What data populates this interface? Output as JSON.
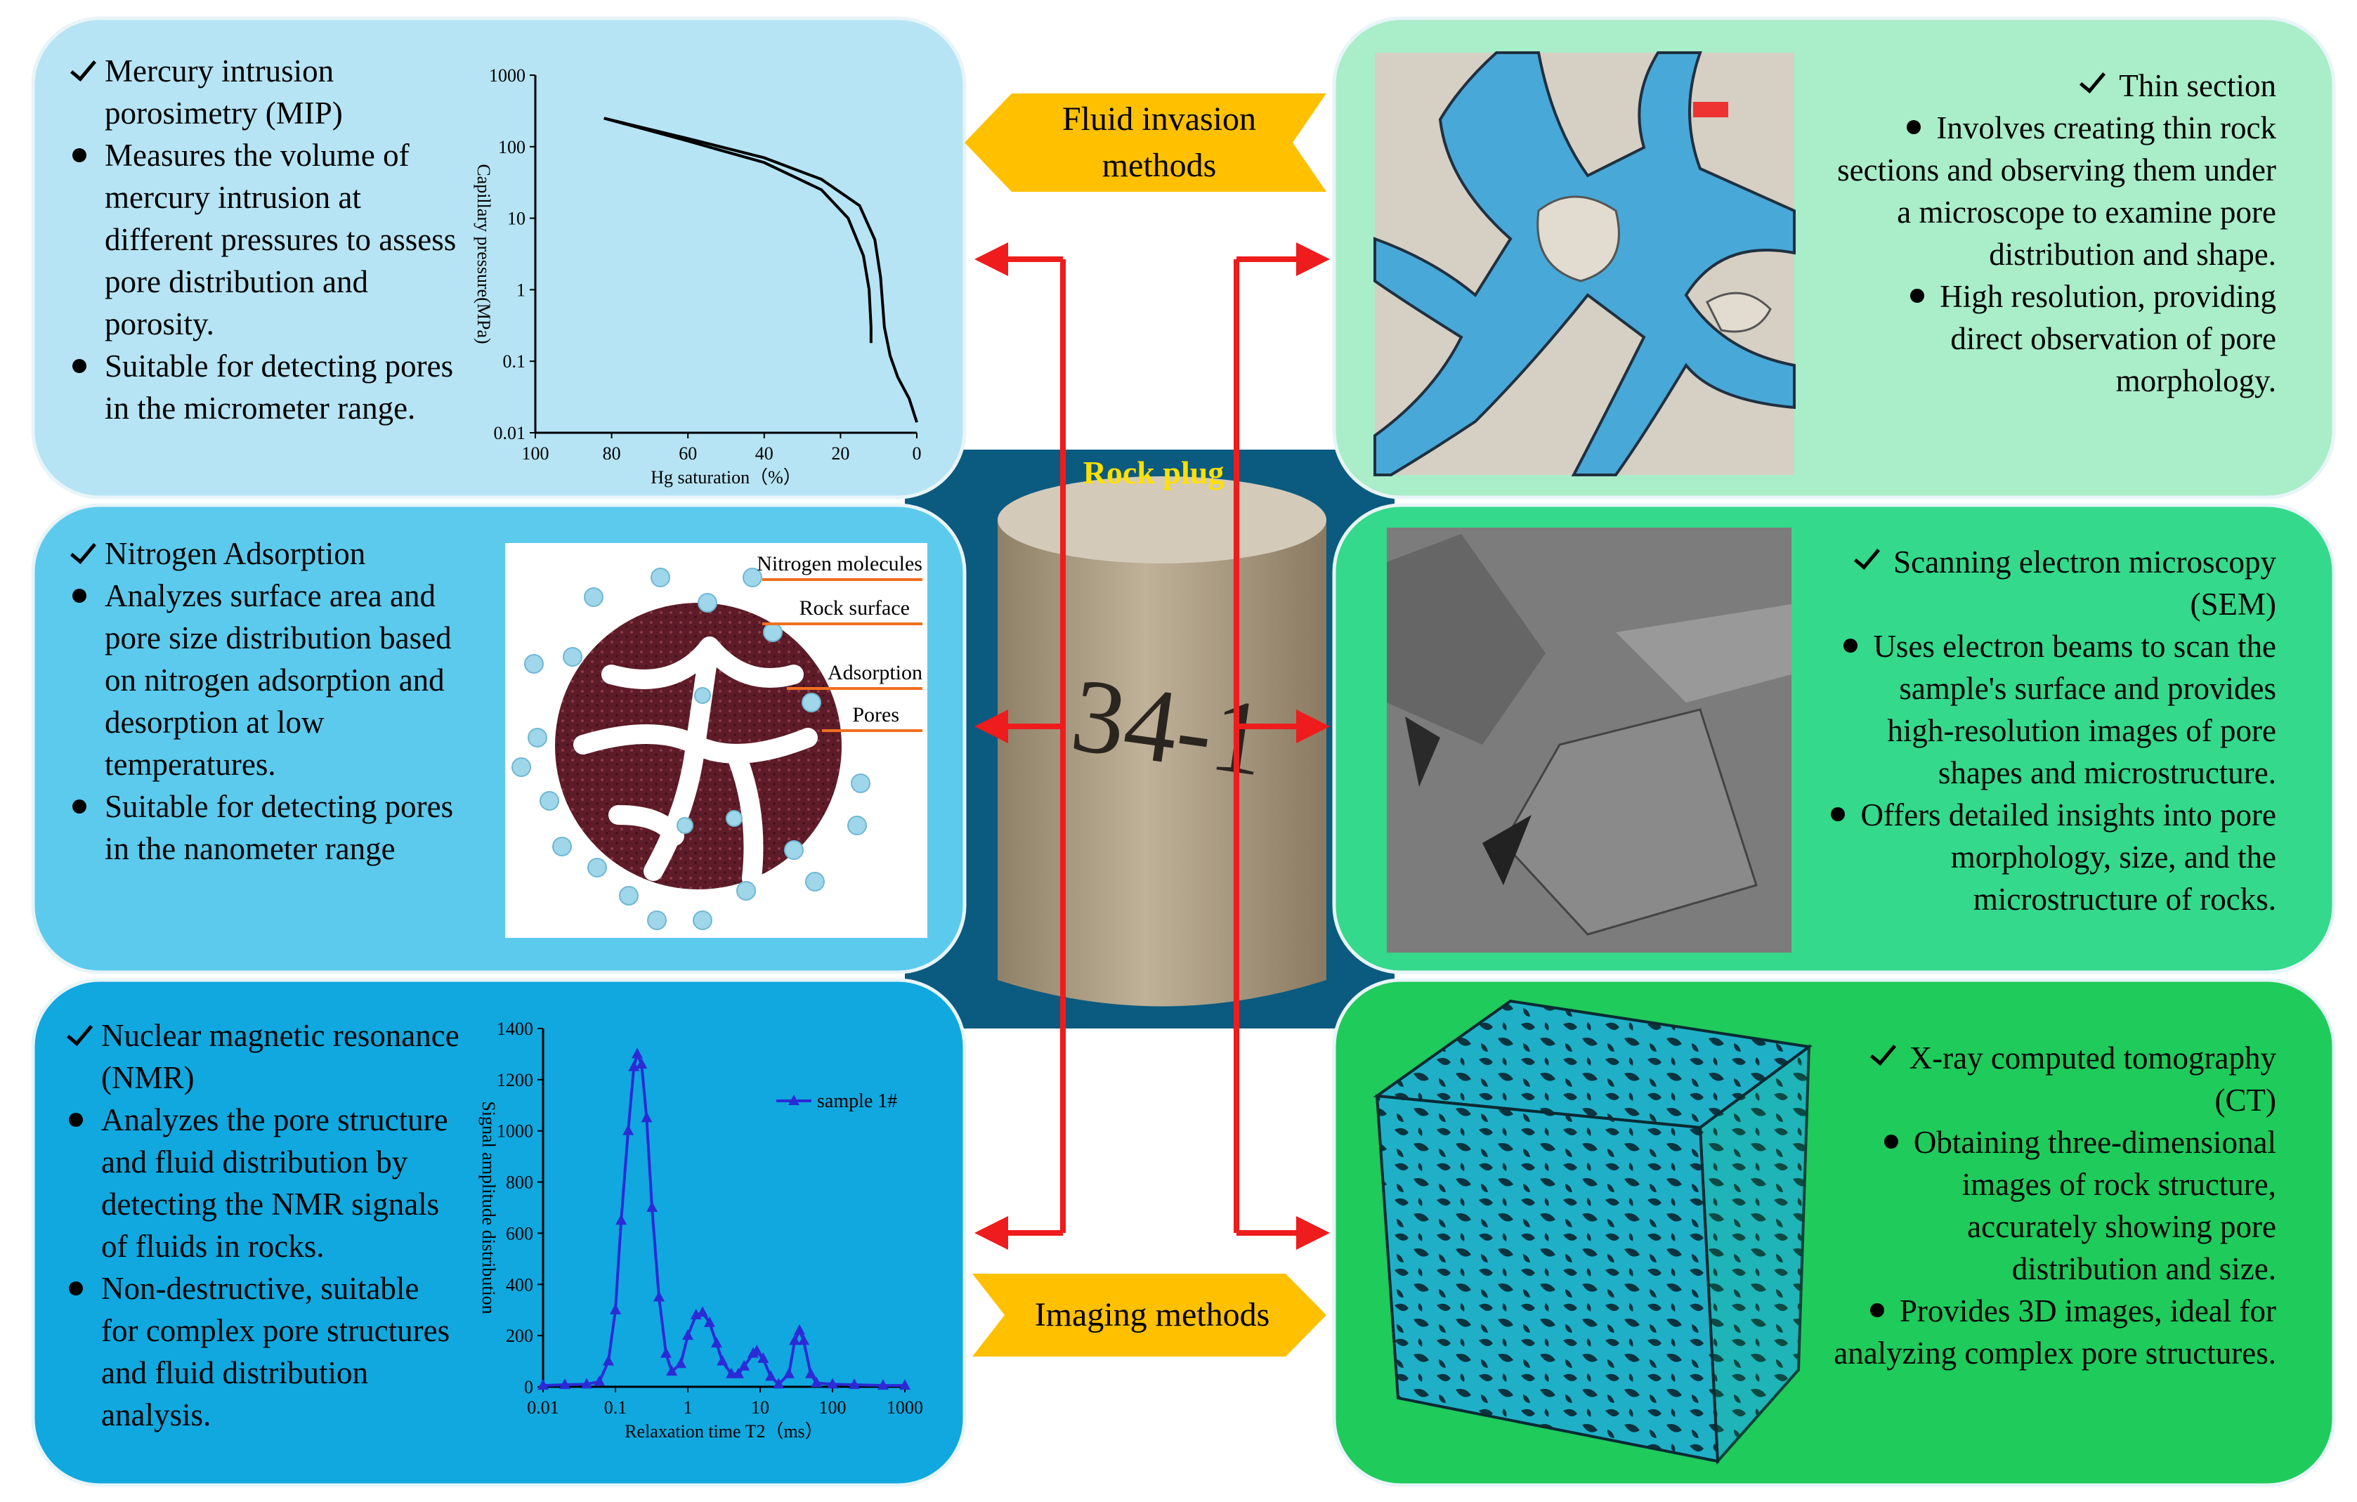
{
  "center": {
    "label": "Rock plug",
    "specimen_mark": "34-1"
  },
  "banners": [
    "Fluid invasion methods",
    "Imaging methods"
  ],
  "panels": [
    {
      "title": "Mercury intrusion porosimetry (MIP)",
      "bullets": [
        "Measures the volume of mercury intrusion at different pressures to assess pore distribution and porosity.",
        "Suitable for detecting pores in the micrometer range."
      ]
    },
    {
      "title": "Nitrogen Adsorption",
      "bullets": [
        "Analyzes surface area and pore size distribution based on nitrogen adsorption and desorption at low temperatures.",
        "Suitable for detecting pores in the nanometer range"
      ]
    },
    {
      "title": "Nuclear magnetic resonance (NMR)",
      "bullets": [
        "Analyzes the pore structure and fluid distribution by detecting the NMR signals of fluids in rocks.",
        "Non-destructive, suitable for complex pore structures and fluid distribution analysis."
      ]
    },
    {
      "title": "Thin section",
      "bullets": [
        "Involves creating thin rock sections and observing them under a microscope to examine pore distribution and shape.",
        "High resolution, providing direct observation of pore morphology."
      ]
    },
    {
      "title": "Scanning electron microscopy (SEM)",
      "bullets": [
        "Uses electron beams to scan the sample's surface and provides high-resolution images of pore shapes and microstructure.",
        "Offers detailed insights into pore morphology, size, and the microstructure of rocks."
      ]
    },
    {
      "title": "X-ray computed tomography (CT)",
      "bullets": [
        "Obtaining three-dimensional images of rock structure, accurately showing pore distribution and size.",
        "Provides 3D images, ideal for analyzing complex pore structures."
      ]
    }
  ],
  "nitrogen_diagram": {
    "labels": [
      "Nitrogen molecules",
      "Rock surface",
      "Adsorption",
      "Pores"
    ]
  },
  "mip_chart": {
    "type": "line",
    "x_label": "Hg saturation（%）",
    "y_label": "Capillary pressure(MPa)",
    "xlim": [
      100,
      0
    ],
    "ylim": [
      0.01,
      1000
    ],
    "log_y": true,
    "xticks": [
      100,
      80,
      60,
      40,
      20,
      0
    ],
    "yticks": [
      1000,
      100,
      10,
      1,
      0.1,
      0.01
    ],
    "series": [
      {
        "color": "#000000",
        "x": [
          82,
          60,
          40,
          25,
          18,
          14,
          12.5,
          12,
          12
        ],
        "values": [
          250,
          120,
          60,
          25,
          10,
          3,
          1,
          0.3,
          0.18
        ]
      },
      {
        "color": "#000000",
        "x": [
          82,
          60,
          40,
          25,
          15,
          11,
          9.5,
          8.5,
          7,
          5,
          2,
          0
        ],
        "values": [
          250,
          130,
          70,
          35,
          15,
          5,
          1.5,
          0.3,
          0.12,
          0.06,
          0.03,
          0.014
        ]
      }
    ]
  },
  "nmr_chart": {
    "type": "line",
    "x_label": "Relaxation time T2（ms）",
    "y_label": "Signal amplitude distribution",
    "xlim": [
      0.01,
      1000
    ],
    "ylim": [
      0,
      1400
    ],
    "log_x": true,
    "xticks": [
      0.01,
      0.1,
      1,
      10,
      100,
      1000
    ],
    "yticks": [
      0,
      200,
      400,
      600,
      800,
      1000,
      1200,
      1400
    ],
    "series": [
      {
        "name": "sample 1#",
        "color": "#2b2bd6",
        "x": [
          0.01,
          0.02,
          0.04,
          0.06,
          0.08,
          0.1,
          0.12,
          0.15,
          0.18,
          0.2,
          0.23,
          0.27,
          0.32,
          0.4,
          0.5,
          0.6,
          0.8,
          1,
          1.3,
          1.6,
          2,
          2.5,
          3,
          4,
          5,
          6,
          8,
          9,
          11,
          14,
          18,
          25,
          30,
          35,
          40,
          50,
          60,
          100,
          200,
          500,
          1000
        ],
        "values": [
          5,
          8,
          10,
          20,
          100,
          300,
          650,
          1000,
          1250,
          1300,
          1260,
          1050,
          700,
          350,
          130,
          60,
          90,
          200,
          280,
          290,
          250,
          170,
          100,
          50,
          50,
          80,
          130,
          140,
          110,
          40,
          10,
          50,
          180,
          220,
          180,
          50,
          15,
          10,
          8,
          5,
          5
        ]
      }
    ]
  }
}
